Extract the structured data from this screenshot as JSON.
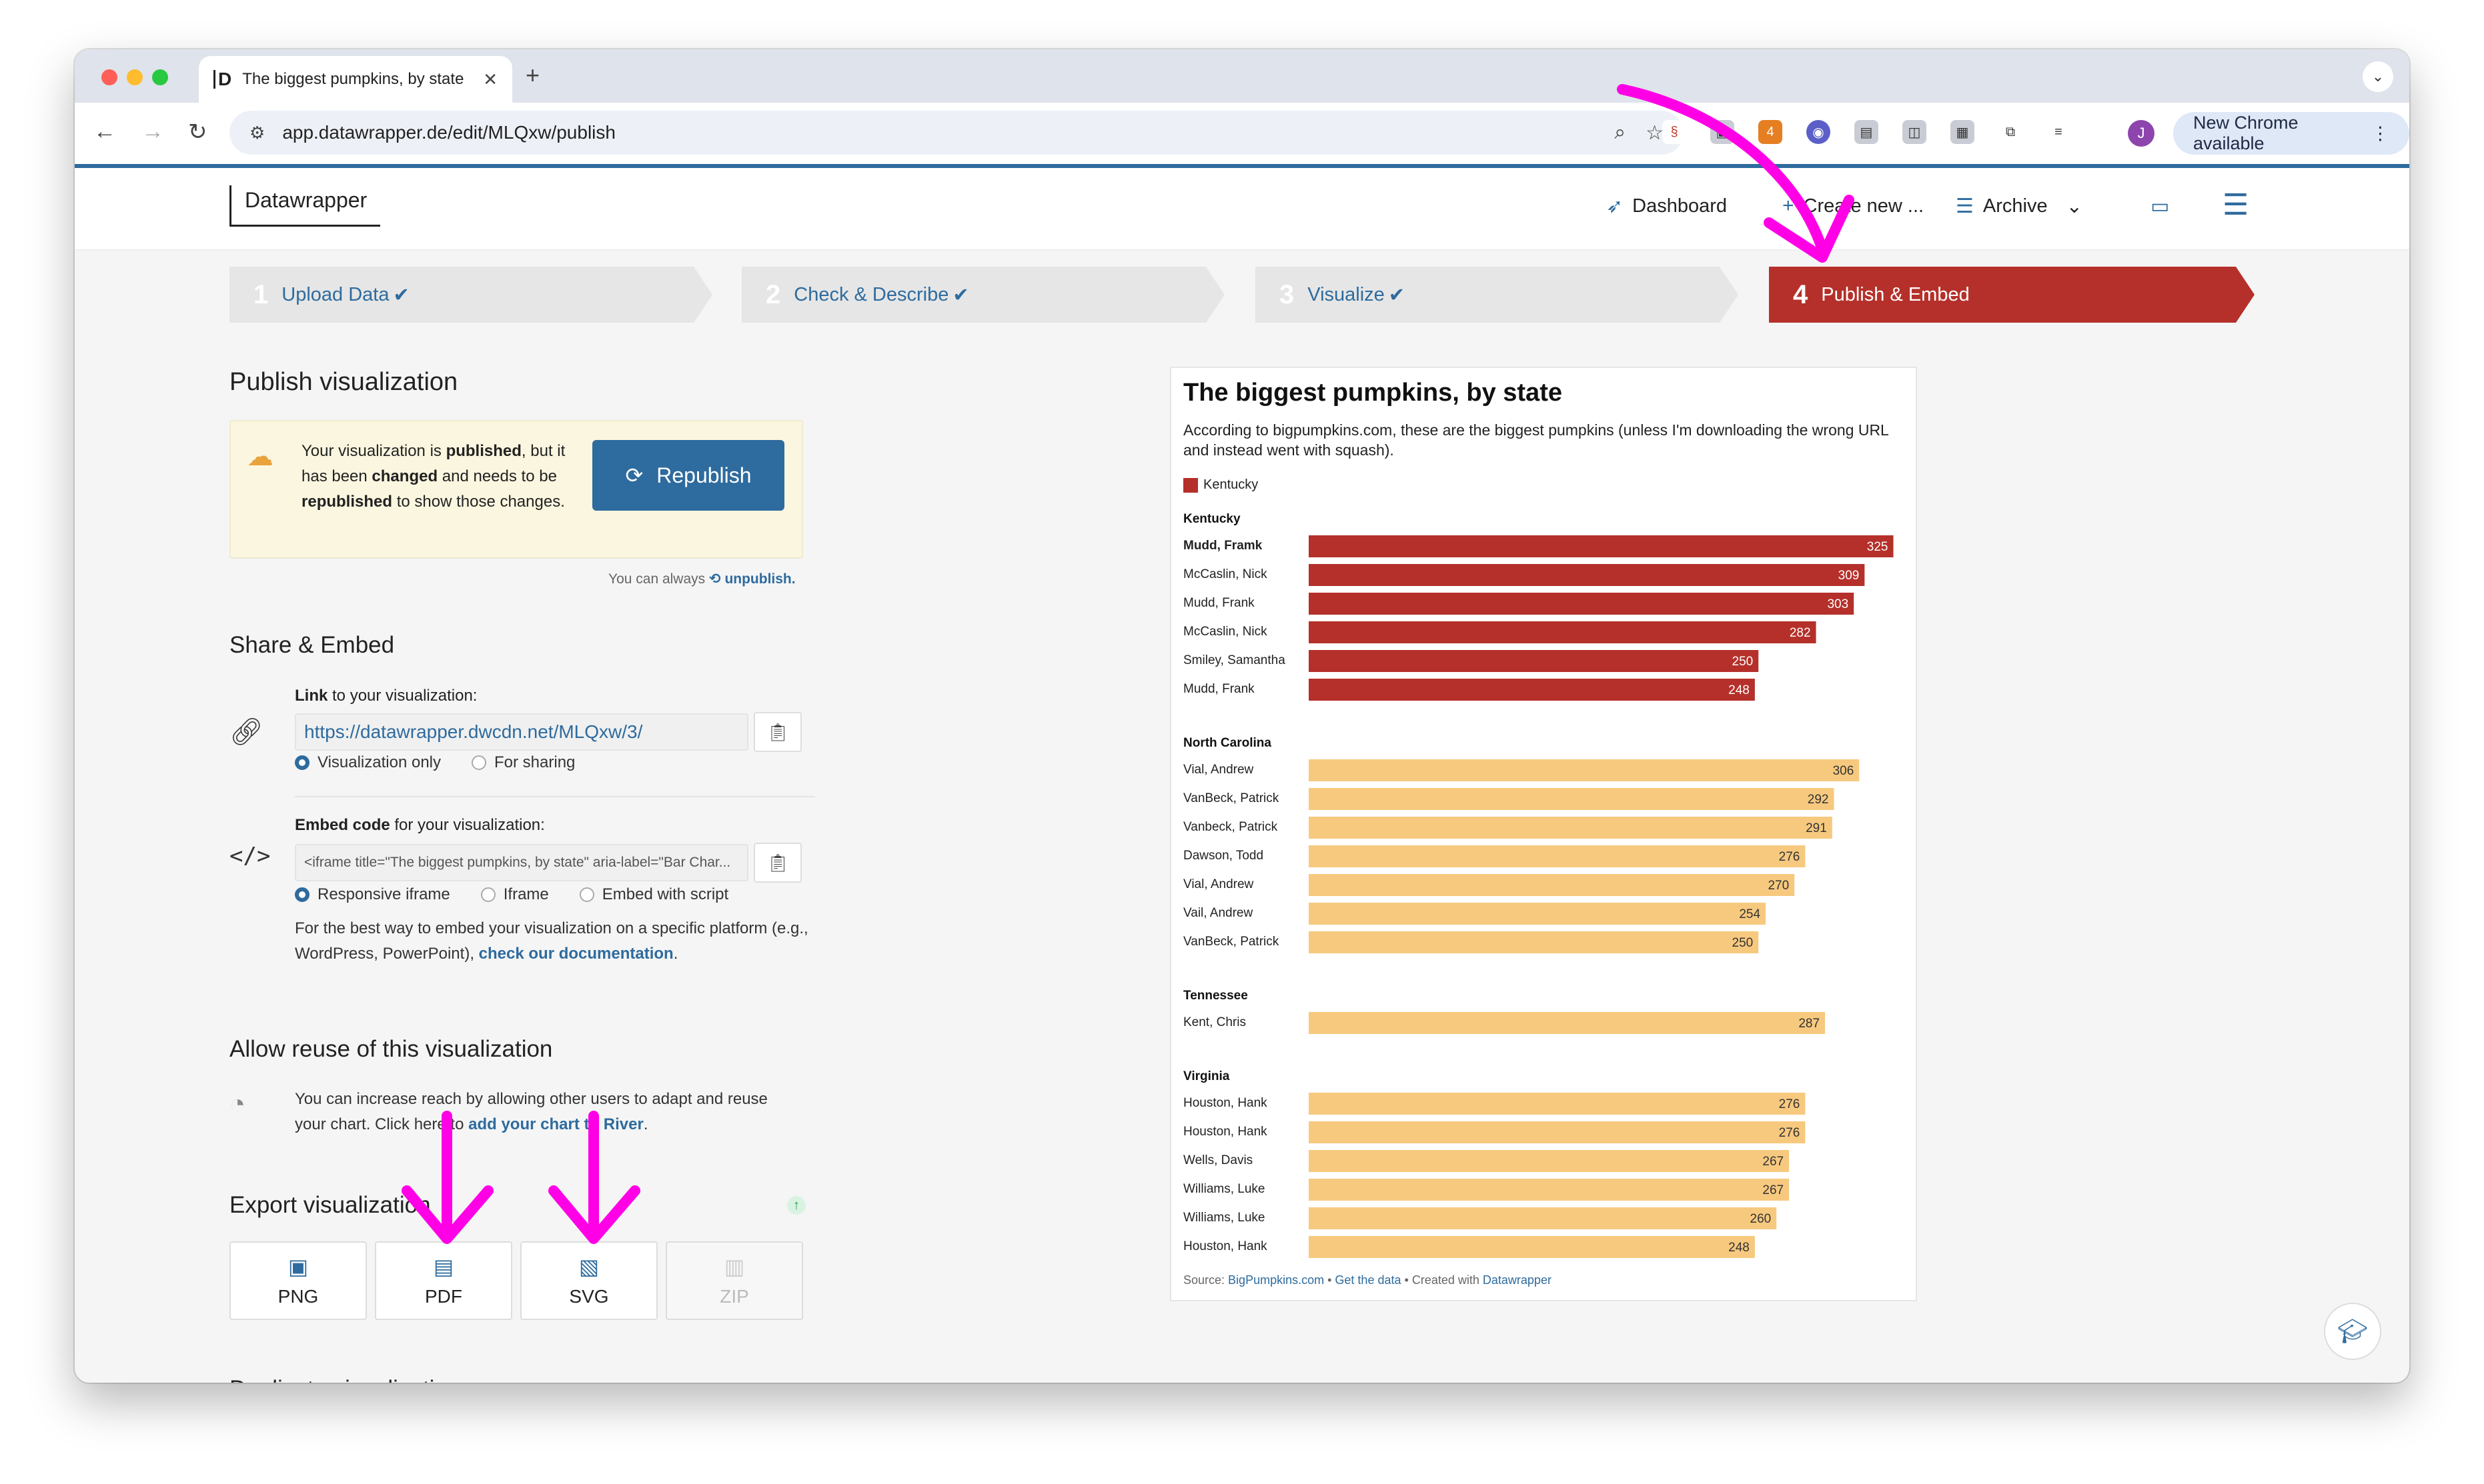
{
  "browser": {
    "tab_title": "The biggest pumpkins, by state",
    "favicon": "D",
    "url": "app.datawrapper.de/edit/MLQxw/publish",
    "new_chrome": "New Chrome available",
    "avatar": "J",
    "ext_badge": "4",
    "colors": {
      "close": "#ff5f57",
      "minimize": "#febc2e",
      "maximize": "#28c840"
    }
  },
  "app": {
    "logo": "Datawrapper",
    "nav": {
      "dashboard": "Dashboard",
      "create": "Create new ...",
      "archive": "Archive"
    }
  },
  "steps": [
    {
      "num": "1",
      "label": "Upload Data",
      "check": "✔"
    },
    {
      "num": "2",
      "label": "Check & Describe",
      "check": "✔"
    },
    {
      "num": "3",
      "label": "Visualize",
      "check": "✔"
    },
    {
      "num": "4",
      "label": "Publish & Embed",
      "check": ""
    }
  ],
  "publish": {
    "heading": "Publish visualization",
    "notice_1": "Your visualization is ",
    "notice_2": "published",
    "notice_3": ", but it has been ",
    "notice_4": "changed",
    "notice_5": " and needs to be ",
    "notice_6": "republished",
    "notice_7": " to show those changes.",
    "republish_label": "Republish",
    "unpublish_prefix": "You can always",
    "unpublish_link": "unpublish."
  },
  "share": {
    "heading": "Share & Embed",
    "link_label_b": "Link",
    "link_label": " to your visualization:",
    "link_url": "https://datawrapper.dwcdn.net/MLQxw/3/",
    "link_opt1": "Visualization only",
    "link_opt2": "For sharing",
    "embed_label_b": "Embed code",
    "embed_label": " for your visualization:",
    "embed_code": "<iframe title=\"The biggest pumpkins, by state\" aria-label=\"Bar Char...",
    "embed_opt1": "Responsive iframe",
    "embed_opt2": "Iframe",
    "embed_opt3": "Embed with script",
    "embed_help": "For the best way to embed your visualization on a specific platform (e.g., WordPress, PowerPoint), ",
    "embed_help_link": "check our documentation",
    "embed_help_end": "."
  },
  "reuse": {
    "heading": "Allow reuse of this visualization",
    "text": "You can increase reach by allowing other users to adapt and reuse your chart. Click here to ",
    "link": "add your chart to River",
    "end": "."
  },
  "export": {
    "heading": "Export visualization",
    "buttons": [
      "PNG",
      "PDF",
      "SVG",
      "ZIP"
    ]
  },
  "cutoff_heading": "Duplicate visualization",
  "chart_data": {
    "type": "bar",
    "title": "The biggest pumpkins, by state",
    "subtitle": "According to bigpumpkins.com, these are the biggest pumpkins (unless I'm downloading the wrong URL and instead went with squash).",
    "legend": "Kentucky",
    "highlight_color": "#b5302a",
    "base_color": "#f7c97e",
    "xlim": [
      0,
      330
    ],
    "groups": [
      {
        "name": "Kentucky",
        "highlight": true,
        "rows": [
          {
            "label": "Mudd, Framk",
            "value": 325,
            "bold": true
          },
          {
            "label": "McCaslin, Nick",
            "value": 309
          },
          {
            "label": "Mudd, Frank",
            "value": 303
          },
          {
            "label": "McCaslin, Nick",
            "value": 282
          },
          {
            "label": "Smiley, Samantha",
            "value": 250
          },
          {
            "label": "Mudd, Frank",
            "value": 248
          }
        ]
      },
      {
        "name": "North Carolina",
        "highlight": false,
        "rows": [
          {
            "label": "Vial, Andrew",
            "value": 306
          },
          {
            "label": "VanBeck, Patrick",
            "value": 292
          },
          {
            "label": "Vanbeck, Patrick",
            "value": 291
          },
          {
            "label": "Dawson, Todd",
            "value": 276
          },
          {
            "label": "Vial, Andrew",
            "value": 270
          },
          {
            "label": "Vail, Andrew",
            "value": 254
          },
          {
            "label": "VanBeck, Patrick",
            "value": 250
          }
        ]
      },
      {
        "name": "Tennessee",
        "highlight": false,
        "rows": [
          {
            "label": "Kent, Chris",
            "value": 287
          }
        ]
      },
      {
        "name": "Virginia",
        "highlight": false,
        "rows": [
          {
            "label": "Houston, Hank",
            "value": 276
          },
          {
            "label": "Houston, Hank",
            "value": 276
          },
          {
            "label": "Wells, Davis",
            "value": 267
          },
          {
            "label": "Williams, Luke",
            "value": 267
          },
          {
            "label": "Williams, Luke",
            "value": 260
          },
          {
            "label": "Houston, Hank",
            "value": 248
          }
        ]
      }
    ],
    "source_prefix": "Source: ",
    "source": "BigPumpkins.com",
    "get_data": "Get the data",
    "created_prefix": "Created with",
    "created_link": "Datawrapper",
    "dot_sep": " • "
  },
  "annotations": {
    "arrow_color": "#ff00e6"
  }
}
